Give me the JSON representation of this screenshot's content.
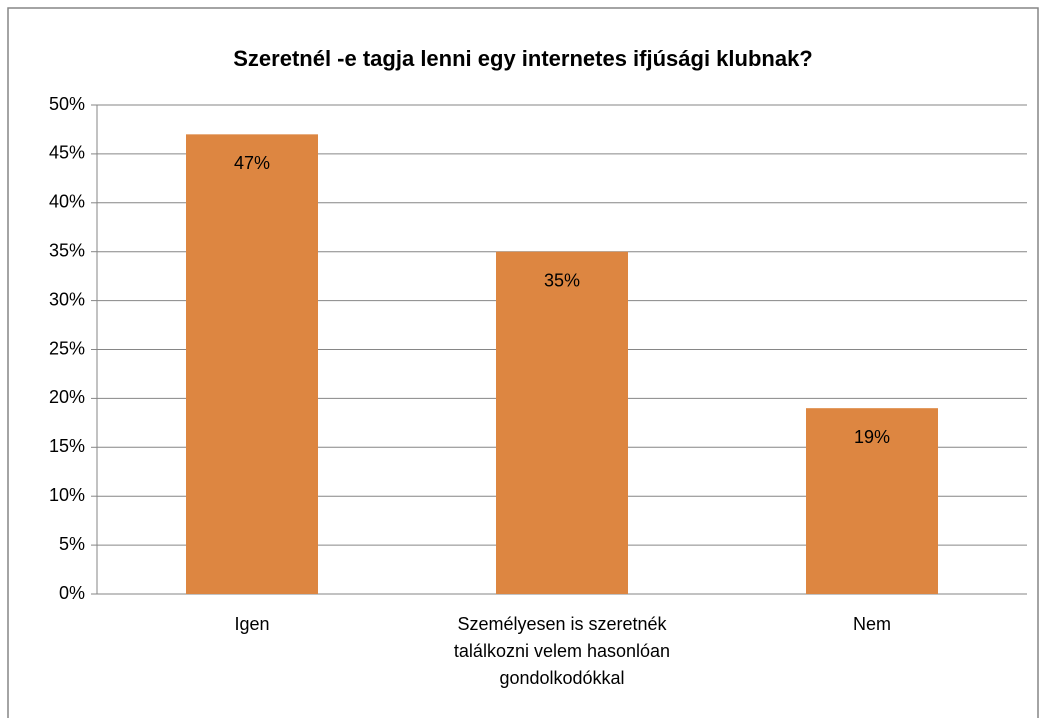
{
  "chart_data": {
    "type": "bar",
    "title": "Szeretnél -e tagja lenni egy internetes ifjúsági klubnak?",
    "categories": [
      "Igen",
      "Személyesen is szeretnék találkozni velem hasonlóan gondolkodókkal",
      "Nem"
    ],
    "values": [
      47,
      35,
      19
    ],
    "value_labels": [
      "47%",
      "35%",
      "19%"
    ],
    "color": "#dd8641",
    "ylim": [
      0,
      50
    ],
    "yticks": [
      {
        "value": 0,
        "label": "0%"
      },
      {
        "value": 5,
        "label": "5%"
      },
      {
        "value": 10,
        "label": "10%"
      },
      {
        "value": 15,
        "label": "15%"
      },
      {
        "value": 20,
        "label": "20%"
      },
      {
        "value": 25,
        "label": "25%"
      },
      {
        "value": 30,
        "label": "30%"
      },
      {
        "value": 35,
        "label": "35%"
      },
      {
        "value": 40,
        "label": "40%"
      },
      {
        "value": 45,
        "label": "45%"
      },
      {
        "value": 50,
        "label": "50%"
      }
    ],
    "grid": true
  }
}
